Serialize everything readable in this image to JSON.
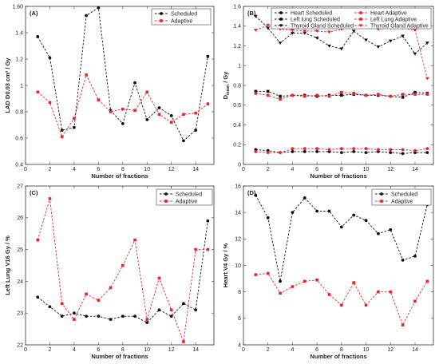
{
  "colors": {
    "scheduled": "#111111",
    "adaptive": "#e8262a"
  },
  "chart_data": [
    {
      "id": "A",
      "type": "line",
      "panel_label": "(A)",
      "xlabel": "Number of fractions",
      "ylabel": "LAD D0.03 cm³ / Gy",
      "xlim": [
        0,
        15.5
      ],
      "ylim": [
        0.4,
        1.6
      ],
      "xticks": [
        0,
        2,
        4,
        6,
        8,
        10,
        12,
        14
      ],
      "yticks": [
        0.4,
        0.6,
        0.8,
        1.0,
        1.2,
        1.4,
        1.6
      ],
      "ytick_labels": [
        "0.4",
        "0.6",
        "0.8",
        "1",
        "1.2",
        "1.4",
        "1.60"
      ],
      "legend_position": "top-right",
      "x": [
        1,
        2,
        3,
        4,
        5,
        6,
        7,
        8,
        9,
        10,
        11,
        12,
        13,
        14,
        15
      ],
      "series": [
        {
          "name": "Scheduled",
          "style": "scheduled",
          "marker": "circle",
          "values": [
            1.37,
            1.21,
            0.66,
            0.68,
            1.53,
            1.59,
            0.81,
            0.71,
            1.02,
            0.74,
            0.83,
            0.77,
            0.58,
            0.66,
            1.22
          ]
        },
        {
          "name": "Adaptive",
          "style": "adaptive",
          "marker": "square",
          "values": [
            0.95,
            0.87,
            0.61,
            0.75,
            1.08,
            0.89,
            0.8,
            0.82,
            0.81,
            0.95,
            0.78,
            0.72,
            0.78,
            0.79,
            0.86
          ]
        }
      ]
    },
    {
      "id": "B",
      "type": "line",
      "panel_label": "(B)",
      "xlabel": "Number of fractions",
      "ylabel": "D_mean / Gy",
      "ylabel_main": "D",
      "ylabel_sub": "mean",
      "ylabel_tail": " / Gy",
      "xlim": [
        0,
        15.5
      ],
      "ylim": [
        0,
        1.6
      ],
      "xticks": [
        0,
        2,
        4,
        6,
        8,
        10,
        12,
        14
      ],
      "yticks": [
        0,
        0.2,
        0.4,
        0.6,
        0.8,
        1.0,
        1.2,
        1.4,
        1.6
      ],
      "ytick_labels": [
        "0",
        "0.2",
        "0.4",
        "0.6",
        "0.8",
        "1",
        "1.2",
        "1.4",
        "1.6"
      ],
      "legend_position": "top",
      "x": [
        1,
        2,
        3,
        4,
        5,
        6,
        7,
        8,
        9,
        10,
        11,
        12,
        13,
        14,
        15
      ],
      "series": [
        {
          "name": "Heart Scheduled",
          "style": "scheduled",
          "marker": "circle",
          "values": [
            0.15,
            0.14,
            0.12,
            0.13,
            0.13,
            0.13,
            0.13,
            0.12,
            0.13,
            0.12,
            0.13,
            0.12,
            0.11,
            0.12,
            0.12
          ]
        },
        {
          "name": "Heart Adaptive",
          "style": "adaptive",
          "marker": "circle",
          "values": [
            0.13,
            0.12,
            0.12,
            0.16,
            0.16,
            0.16,
            0.15,
            0.16,
            0.16,
            0.16,
            0.15,
            0.15,
            0.15,
            0.14,
            0.16
          ]
        },
        {
          "name": "Left lung Scheduled",
          "style": "scheduled",
          "marker": "square",
          "values": [
            0.74,
            0.74,
            0.69,
            0.7,
            0.7,
            0.69,
            0.7,
            0.7,
            0.71,
            0.7,
            0.7,
            0.69,
            0.68,
            0.73,
            0.72
          ]
        },
        {
          "name": "Left Lung Adaptive",
          "style": "adaptive",
          "marker": "square",
          "values": [
            0.72,
            0.7,
            0.66,
            0.7,
            0.69,
            0.7,
            0.69,
            0.73,
            0.72,
            0.7,
            0.71,
            0.69,
            0.71,
            0.71,
            0.71
          ]
        },
        {
          "name": "Thyroid Gland Scheduled",
          "style": "scheduled",
          "marker": "triangle-down",
          "values": [
            1.5,
            1.38,
            1.23,
            1.33,
            1.33,
            1.28,
            1.2,
            1.17,
            1.35,
            1.26,
            1.19,
            1.25,
            1.3,
            1.12,
            1.23
          ]
        },
        {
          "name": "Thyroid Gland Adaptive",
          "style": "adaptive",
          "marker": "triangle-down",
          "values": [
            1.36,
            1.41,
            1.37,
            1.36,
            1.35,
            1.35,
            1.34,
            1.37,
            1.4,
            1.4,
            1.37,
            1.38,
            1.38,
            1.36,
            0.87
          ]
        }
      ]
    },
    {
      "id": "C",
      "type": "line",
      "panel_label": "(C)",
      "xlabel": "Number of fractions",
      "ylabel": "Left Lung V16 Gy / %",
      "xlim": [
        0,
        15.5
      ],
      "ylim": [
        22,
        27
      ],
      "xticks": [
        0,
        2,
        4,
        6,
        8,
        10,
        12,
        14
      ],
      "yticks": [
        22,
        23,
        24,
        25,
        26,
        27
      ],
      "ytick_labels": [
        "22",
        "23",
        "24",
        "25",
        "26",
        "27"
      ],
      "legend_position": "top-right",
      "x": [
        1,
        2,
        3,
        4,
        5,
        6,
        7,
        8,
        9,
        10,
        11,
        12,
        13,
        14,
        15
      ],
      "series": [
        {
          "name": "Scheduled",
          "style": "scheduled",
          "marker": "circle",
          "values": [
            23.5,
            23.2,
            22.9,
            23.0,
            22.9,
            22.9,
            22.8,
            22.9,
            22.9,
            22.7,
            23.1,
            22.9,
            23.3,
            23.1,
            25.9
          ]
        },
        {
          "name": "Adaptive",
          "style": "adaptive",
          "marker": "square",
          "values": [
            25.3,
            26.6,
            23.3,
            22.8,
            23.6,
            23.4,
            23.8,
            24.5,
            25.3,
            22.8,
            24.1,
            23.1,
            22.1,
            25.0,
            25.0
          ]
        }
      ]
    },
    {
      "id": "D",
      "type": "line",
      "panel_label": "(D)",
      "xlabel": "Number of fractions",
      "ylabel": "Heart V4 Gy / %",
      "xlim": [
        0,
        15.5
      ],
      "ylim": [
        4,
        16
      ],
      "xticks": [
        0,
        2,
        4,
        6,
        8,
        10,
        12,
        14
      ],
      "yticks": [
        4,
        6,
        8,
        10,
        12,
        14,
        16
      ],
      "ytick_labels": [
        "4",
        "6",
        "8",
        "10",
        "12",
        "14",
        "16"
      ],
      "legend_position": "top-right",
      "x": [
        1,
        2,
        3,
        4,
        5,
        6,
        7,
        8,
        9,
        10,
        11,
        12,
        13,
        14,
        15
      ],
      "series": [
        {
          "name": "Scheduled",
          "style": "scheduled",
          "marker": "circle",
          "values": [
            15.3,
            13.6,
            8.8,
            14.0,
            15.1,
            14.1,
            14.1,
            12.9,
            13.8,
            13.4,
            12.4,
            12.7,
            10.4,
            10.7,
            14.6
          ]
        },
        {
          "name": "Adaptive",
          "style": "adaptive",
          "marker": "square",
          "values": [
            9.3,
            9.4,
            7.9,
            8.4,
            8.8,
            8.9,
            7.8,
            7.0,
            8.7,
            7.0,
            8.0,
            8.0,
            5.5,
            7.3,
            8.8
          ]
        }
      ]
    }
  ]
}
